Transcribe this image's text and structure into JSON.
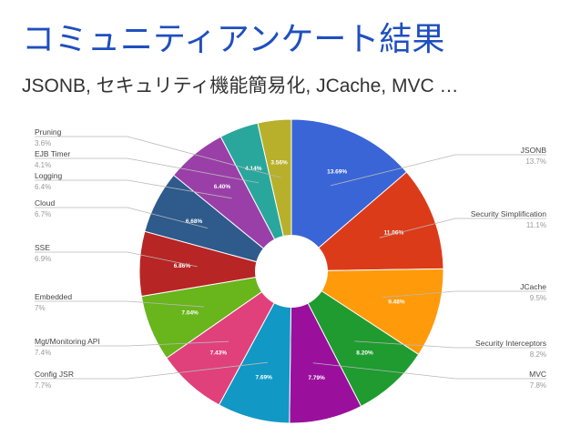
{
  "slide": {
    "title": "コミュニティアンケート結果",
    "subtitle": "JSONB, セキュリティ機能簡易化, JCache, MVC …"
  },
  "chart_data": {
    "type": "pie",
    "title": "",
    "slices": [
      {
        "label": "JSONB",
        "value": 13.69,
        "inner_label": "13.69%",
        "legend_pct": "13.7%",
        "color": "#3a65d6",
        "side": "right"
      },
      {
        "label": "Security Simplification",
        "value": 11.06,
        "inner_label": "11.06%",
        "legend_pct": "11.1%",
        "color": "#dc3b19",
        "side": "right"
      },
      {
        "label": "JCache",
        "value": 9.48,
        "inner_label": "9.48%",
        "legend_pct": "9.5%",
        "color": "#ff9a0a",
        "side": "right"
      },
      {
        "label": "Security Interceptors",
        "value": 8.2,
        "inner_label": "8.20%",
        "legend_pct": "8.2%",
        "color": "#1f9b2f",
        "side": "right"
      },
      {
        "label": "MVC",
        "value": 7.79,
        "inner_label": "7.79%",
        "legend_pct": "7.8%",
        "color": "#9a109c",
        "side": "right"
      },
      {
        "label": "Config JSR",
        "value": 7.69,
        "inner_label": "7.69%",
        "legend_pct": "7.7%",
        "color": "#1198c4",
        "side": "left"
      },
      {
        "label": "Mgt/Monitoring API",
        "value": 7.43,
        "inner_label": "7.43%",
        "legend_pct": "7.4%",
        "color": "#e0417a",
        "side": "left"
      },
      {
        "label": "Embedded",
        "value": 7.04,
        "inner_label": "7.04%",
        "legend_pct": "7%",
        "color": "#68b51c",
        "side": "left"
      },
      {
        "label": "SSE",
        "value": 6.86,
        "inner_label": "6.86%",
        "legend_pct": "6.9%",
        "color": "#b82525",
        "side": "left"
      },
      {
        "label": "Cloud",
        "value": 6.68,
        "inner_label": "6.68%",
        "legend_pct": "6.7%",
        "color": "#2e5a8c",
        "side": "left"
      },
      {
        "label": "Logging",
        "value": 6.4,
        "inner_label": "6.40%",
        "legend_pct": "6.4%",
        "color": "#9a3fa8",
        "side": "left"
      },
      {
        "label": "EJB Timer",
        "value": 4.14,
        "inner_label": "4.14%",
        "legend_pct": "4.1%",
        "color": "#2aa79c",
        "side": "left"
      },
      {
        "label": "Pruning",
        "value": 3.56,
        "inner_label": "3.56%",
        "legend_pct": "3.6%",
        "color": "#b8b02a",
        "side": "left"
      }
    ],
    "donut_hole": true,
    "legend": "labels-outside"
  }
}
